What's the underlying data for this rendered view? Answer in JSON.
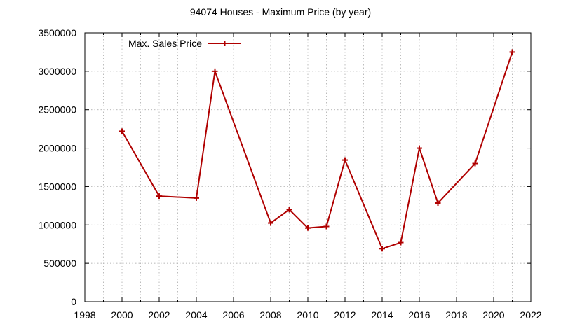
{
  "chart_data": {
    "type": "line",
    "title": "94074 Houses - Maximum Price (by year)",
    "xlabel": "",
    "ylabel": "",
    "xlim": [
      1998,
      2022
    ],
    "ylim": [
      0,
      3500000
    ],
    "xticks": [
      1998,
      2000,
      2002,
      2004,
      2006,
      2008,
      2010,
      2012,
      2014,
      2016,
      2018,
      2020,
      2022
    ],
    "yticks": [
      0,
      500000,
      1000000,
      1500000,
      2000000,
      2500000,
      3000000,
      3500000
    ],
    "grid": true,
    "legend_position": "top-left",
    "series": [
      {
        "name": "Max. Sales Price",
        "color": "#b00000",
        "marker": "plus",
        "x": [
          2000,
          2002,
          2004,
          2005,
          2008,
          2009,
          2010,
          2011,
          2012,
          2014,
          2015,
          2016,
          2017,
          2019,
          2021
        ],
        "y": [
          2220000,
          1375000,
          1350000,
          3000000,
          1025000,
          1200000,
          960000,
          980000,
          1845000,
          690000,
          770000,
          2000000,
          1285000,
          1800000,
          3250000
        ]
      }
    ]
  }
}
